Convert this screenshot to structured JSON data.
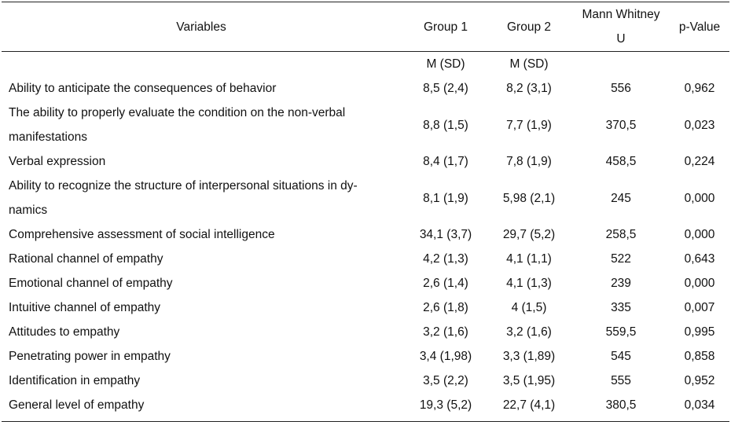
{
  "headers": {
    "variables": "Variables",
    "group1": "Group 1",
    "group2": "Group 2",
    "mann_line1": "Mann Whitney",
    "mann_line2": "U",
    "pvalue": "p-Value"
  },
  "subheader": {
    "group1": "M (SD)",
    "group2": "M (SD)"
  },
  "rows": [
    {
      "variable": "Ability to anticipate the consequences of behavior",
      "g1": "8,5 (2,4)",
      "g2": "8,2 (3,1)",
      "u": "556",
      "p": "0,962"
    },
    {
      "variable": "The ability to properly evaluate the condition on the non-verbal manifestations",
      "g1": "8,8 (1,5)",
      "g2": "7,7 (1,9)",
      "u": "370,5",
      "p": "0,023"
    },
    {
      "variable": "Verbal expression",
      "g1": "8,4 (1,7)",
      "g2": "7,8 (1,9)",
      "u": "458,5",
      "p": "0,224"
    },
    {
      "variable": "Ability to recognize the structure of interpersonal situations in dy-namics",
      "g1": "8,1 (1,9)",
      "g2": "5,98 (2,1)",
      "u": "245",
      "p": "0,000"
    },
    {
      "variable": "Comprehensive assessment of social intelligence",
      "g1": "34,1 (3,7)",
      "g2": "29,7 (5,2)",
      "u": "258,5",
      "p": "0,000"
    },
    {
      "variable": "Rational channel of empathy",
      "g1": "4,2 (1,3)",
      "g2": "4,1 (1,1)",
      "u": "522",
      "p": "0,643"
    },
    {
      "variable": "Emotional channel of empathy",
      "g1": "2,6 (1,4)",
      "g2": "4,1 (1,3)",
      "u": "239",
      "p": "0,000"
    },
    {
      "variable": "Intuitive channel of empathy",
      "g1": "2,6 (1,8)",
      "g2": "4 (1,5)",
      "u": "335",
      "p": "0,007"
    },
    {
      "variable": "Attitudes to empathy",
      "g1": "3,2 (1,6)",
      "g2": "3,2 (1,6)",
      "u": "559,5",
      "p": "0,995"
    },
    {
      "variable": "Penetrating power in empathy",
      "g1": "3,4 (1,98)",
      "g2": "3,3 (1,89)",
      "u": "545",
      "p": "0,858"
    },
    {
      "variable": "Identification in empathy",
      "g1": "3,5 (2,2)",
      "g2": "3,5 (1,95)",
      "u": "555",
      "p": "0,952"
    },
    {
      "variable": "General level of empathy",
      "g1": "19,3 (5,2)",
      "g2": "22,7 (4,1)",
      "u": "380,5",
      "p": "0,034"
    }
  ]
}
